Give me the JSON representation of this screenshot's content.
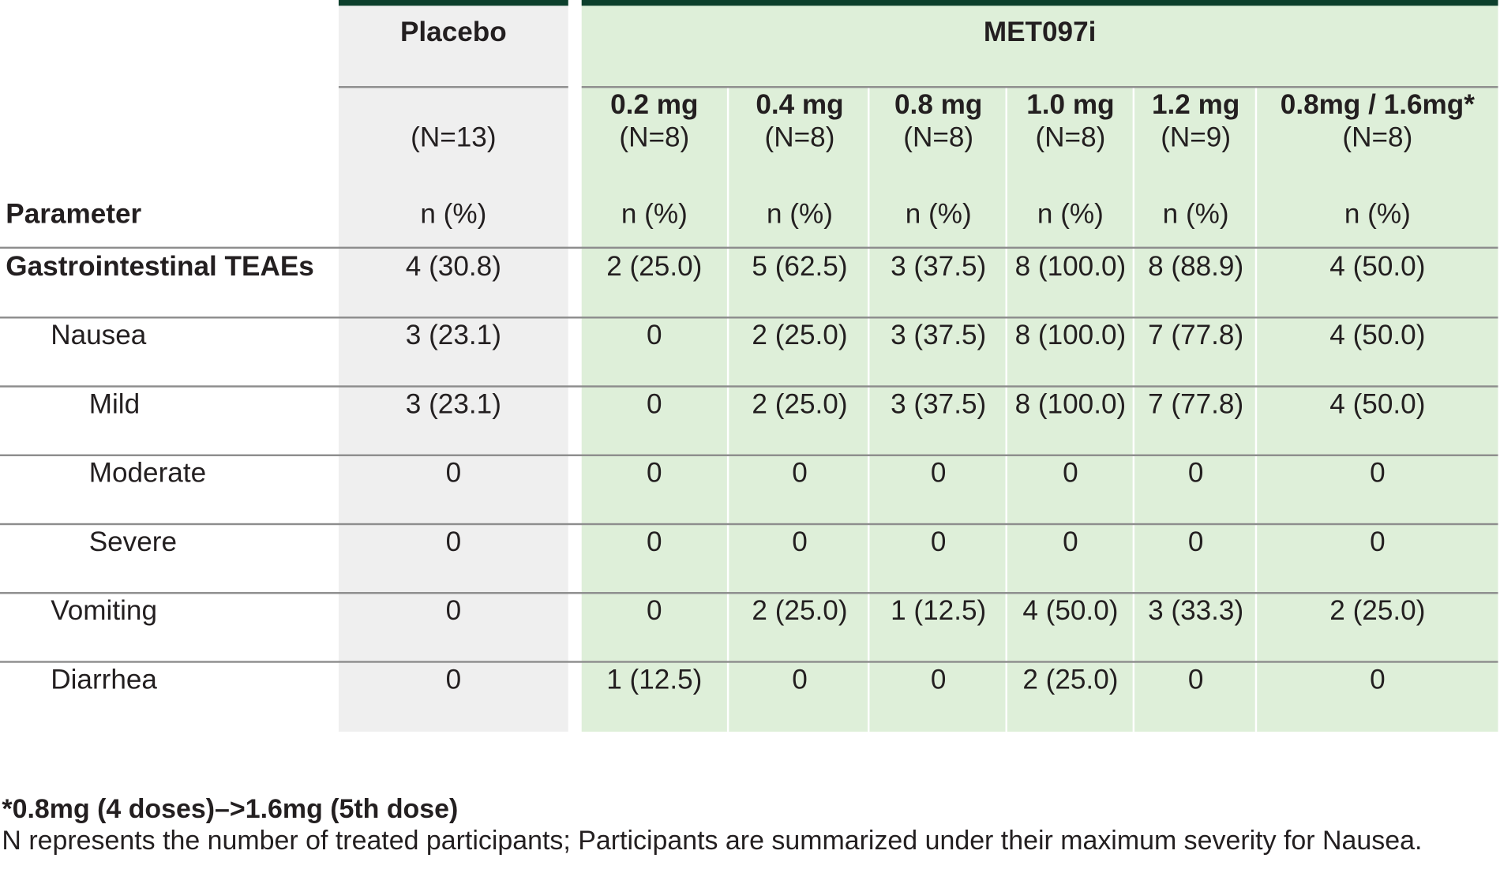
{
  "table": {
    "header": {
      "placebo_group": "Placebo",
      "drug_group": "MET097i",
      "parameter_label": "Parameter",
      "columns": [
        {
          "dose": "",
          "n": "(N=13)",
          "stat": "n (%)"
        },
        {
          "dose": "0.2 mg",
          "n": "(N=8)",
          "stat": "n (%)"
        },
        {
          "dose": "0.4 mg",
          "n": "(N=8)",
          "stat": "n (%)"
        },
        {
          "dose": "0.8 mg",
          "n": "(N=8)",
          "stat": "n (%)"
        },
        {
          "dose": "1.0 mg",
          "n": "(N=8)",
          "stat": "n (%)"
        },
        {
          "dose": "1.2 mg",
          "n": "(N=9)",
          "stat": "n (%)"
        },
        {
          "dose": "0.8mg / 1.6mg*",
          "n": "(N=8)",
          "stat": "n (%)"
        }
      ]
    },
    "rows": [
      {
        "label": "Gastrointestinal TEAEs",
        "level": 0,
        "bold": true,
        "values": [
          "4 (30.8)",
          "2 (25.0)",
          "5 (62.5)",
          "3 (37.5)",
          "8 (100.0)",
          "8 (88.9)",
          "4 (50.0)"
        ]
      },
      {
        "label": "Nausea",
        "level": 1,
        "bold": false,
        "values": [
          "3 (23.1)",
          "0",
          "2 (25.0)",
          "3 (37.5)",
          "8 (100.0)",
          "7 (77.8)",
          "4 (50.0)"
        ]
      },
      {
        "label": "Mild",
        "level": 2,
        "bold": false,
        "values": [
          "3 (23.1)",
          "0",
          "2 (25.0)",
          "3 (37.5)",
          "8 (100.0)",
          "7 (77.8)",
          "4 (50.0)"
        ]
      },
      {
        "label": "Moderate",
        "level": 2,
        "bold": false,
        "values": [
          "0",
          "0",
          "0",
          "0",
          "0",
          "0",
          "0"
        ]
      },
      {
        "label": "Severe",
        "level": 2,
        "bold": false,
        "values": [
          "0",
          "0",
          "0",
          "0",
          "0",
          "0",
          "0"
        ]
      },
      {
        "label": "Vomiting",
        "level": 1,
        "bold": false,
        "values": [
          "0",
          "0",
          "2 (25.0)",
          "1 (12.5)",
          "4 (50.0)",
          "3 (33.3)",
          "2 (25.0)"
        ]
      },
      {
        "label": "Diarrhea",
        "level": 1,
        "bold": false,
        "values": [
          "0",
          "1 (12.5)",
          "0",
          "0",
          "2 (25.0)",
          "0",
          "0"
        ]
      }
    ]
  },
  "footnotes": {
    "dose_note": "*0.8mg (4 doses)–>1.6mg (5th dose)",
    "population_note": "N represents the number of treated participants; Participants are summarized under their maximum severity for Nausea."
  },
  "colors": {
    "placebo_bg": "#efefef",
    "drug_bg": "#deefd9",
    "header_bar": "#0c3f2c",
    "rule": "#8d8d8d",
    "text": "#231f20"
  }
}
